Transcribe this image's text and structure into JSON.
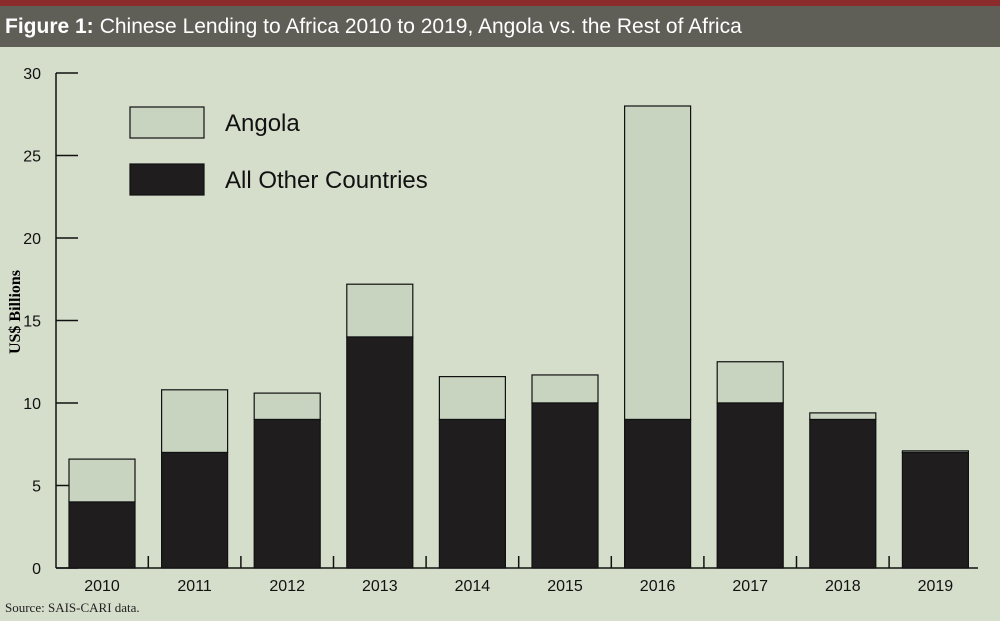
{
  "figure": {
    "label": "Figure 1:",
    "title": "Chinese Lending to Africa 2010 to 2019, Angola vs. the Rest of Africa"
  },
  "source": "Source: SAIS-CARI data.",
  "colors": {
    "background": "#d5ddcb",
    "header_bg": "#5f5f58",
    "top_stripe": "#8b2b2b",
    "angola": "#c9d4c0",
    "others": "#1f1d1e"
  },
  "chart_data": {
    "type": "bar",
    "stacked": true,
    "categories": [
      "2010",
      "2011",
      "2012",
      "2013",
      "2014",
      "2015",
      "2016",
      "2017",
      "2018",
      "2019"
    ],
    "series": [
      {
        "name": "All Other Countries",
        "values": [
          4.0,
          7.0,
          9.0,
          14.0,
          9.0,
          10.0,
          9.0,
          10.0,
          9.0,
          7.0
        ]
      },
      {
        "name": "Angola",
        "values": [
          2.6,
          3.8,
          1.6,
          3.2,
          2.6,
          1.7,
          19.0,
          2.5,
          0.4,
          0.1
        ]
      }
    ],
    "ylabel": "US$ Billions",
    "xlabel": "",
    "ylim": [
      0,
      30
    ],
    "yticks": [
      0,
      5,
      10,
      15,
      20,
      25,
      30
    ],
    "legend_position": "top-left",
    "grid": false
  }
}
